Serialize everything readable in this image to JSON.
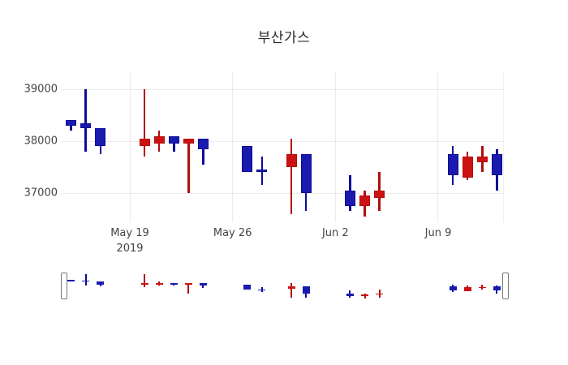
{
  "title": "부산가스",
  "chart_data": {
    "type": "candlestick",
    "title": "부산가스",
    "legend": "none",
    "grid": "on",
    "up_color": "#cc1212",
    "up_line_color": "#b30d0d",
    "down_color": "#1a1aae",
    "down_line_color": "#0d0d96",
    "yaxis": {
      "ticks": [
        {
          "label": "39000",
          "value": 39000
        },
        {
          "label": "38000",
          "value": 38000
        },
        {
          "label": "37000",
          "value": 37000
        }
      ],
      "range": [
        36450,
        39300
      ]
    },
    "xaxis": {
      "ticks": [
        {
          "label": "May 19",
          "sublabel": "2019",
          "date": "2019-05-19"
        },
        {
          "label": "May 26",
          "sublabel": "",
          "date": "2019-05-26"
        },
        {
          "label": "Jun 2",
          "sublabel": "",
          "date": "2019-06-02"
        },
        {
          "label": "Jun 9",
          "sublabel": "",
          "date": "2019-06-09"
        }
      ]
    },
    "rangeslider": {
      "visible": true,
      "selection": "full"
    },
    "candles": [
      {
        "date": "2019-05-15",
        "open": 38400,
        "high": 38400,
        "low": 38200,
        "close": 38300
      },
      {
        "date": "2019-05-16",
        "open": 38350,
        "high": 39000,
        "low": 37800,
        "close": 38250
      },
      {
        "date": "2019-05-17",
        "open": 38250,
        "high": 38250,
        "low": 37750,
        "close": 37900
      },
      {
        "date": "2019-05-20",
        "open": 37900,
        "high": 39000,
        "low": 37700,
        "close": 38050
      },
      {
        "date": "2019-05-21",
        "open": 37950,
        "high": 38200,
        "low": 37800,
        "close": 38100
      },
      {
        "date": "2019-05-22",
        "open": 38100,
        "high": 38100,
        "low": 37800,
        "close": 37950
      },
      {
        "date": "2019-05-23",
        "open": 37950,
        "high": 38050,
        "low": 37000,
        "close": 38050
      },
      {
        "date": "2019-05-24",
        "open": 38050,
        "high": 38050,
        "low": 37550,
        "close": 37850
      },
      {
        "date": "2019-05-27",
        "open": 37900,
        "high": 37900,
        "low": 37400,
        "close": 37400
      },
      {
        "date": "2019-05-28",
        "open": 37450,
        "high": 37700,
        "low": 37150,
        "close": 37400
      },
      {
        "date": "2019-05-30",
        "open": 37500,
        "high": 38050,
        "low": 36600,
        "close": 37750
      },
      {
        "date": "2019-05-31",
        "open": 37750,
        "high": 37750,
        "low": 36650,
        "close": 37000
      },
      {
        "date": "2019-06-03",
        "open": 37050,
        "high": 37350,
        "low": 36650,
        "close": 36750
      },
      {
        "date": "2019-06-04",
        "open": 36750,
        "high": 37050,
        "low": 36550,
        "close": 36950
      },
      {
        "date": "2019-06-05",
        "open": 36900,
        "high": 37400,
        "low": 36650,
        "close": 37050
      },
      {
        "date": "2019-06-10",
        "open": 37750,
        "high": 37900,
        "low": 37150,
        "close": 37350
      },
      {
        "date": "2019-06-11",
        "open": 37300,
        "high": 37800,
        "low": 37250,
        "close": 37700
      },
      {
        "date": "2019-06-12",
        "open": 37600,
        "high": 37900,
        "low": 37400,
        "close": 37700
      },
      {
        "date": "2019-06-13",
        "open": 37750,
        "high": 37850,
        "low": 37050,
        "close": 37350
      }
    ]
  }
}
